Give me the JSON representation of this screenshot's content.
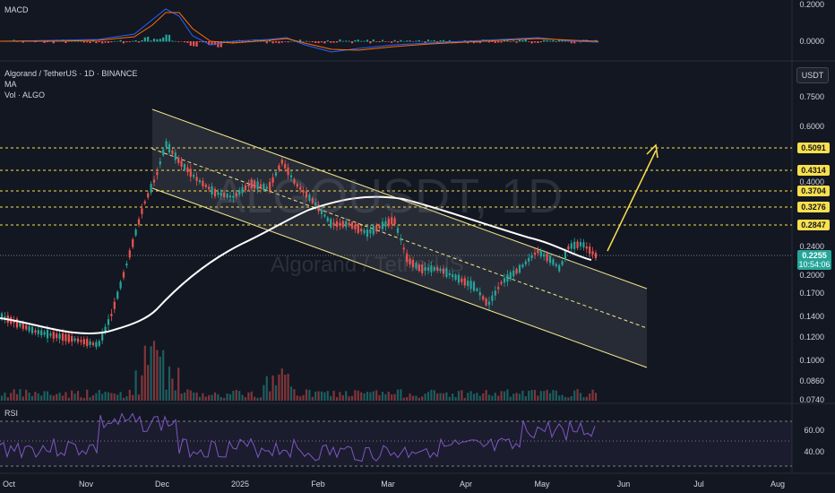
{
  "header": {
    "symbol_line": "Algorand / TetherUS · 1D · BINANCE",
    "indicator_ma": "MA",
    "indicator_vol": "Vol · ALGO",
    "currency": "USDT"
  },
  "watermark": {
    "ticker": "ALGOUSDT, 1D",
    "name": "Algorand / TetherUS"
  },
  "macd": {
    "label": "MACD",
    "ticks": [
      "0.2000",
      "0.0000"
    ]
  },
  "rsi": {
    "label": "RSI",
    "ticks": [
      "60.00",
      "40.00"
    ]
  },
  "price_axis": {
    "ticks": [
      "0.7500",
      "0.6000",
      "0.4000",
      "0.2400",
      "0.2000",
      "0.1700",
      "0.1400",
      "0.1200",
      "0.1000",
      "0.0860",
      "0.0740"
    ],
    "levels": [
      "0.5091",
      "0.4314",
      "0.3704",
      "0.3276",
      "0.2847"
    ],
    "current_price": "0.2255",
    "countdown": "10:54:06"
  },
  "time_axis": [
    "Oct",
    "Nov",
    "Dec",
    "2025",
    "Feb",
    "Mar",
    "Apr",
    "May",
    "Jun",
    "Jul",
    "Aug"
  ],
  "colors": {
    "background": "#131722",
    "up": "#26a69a",
    "down": "#ef5350",
    "level_line": "#f9e04c",
    "channel": "#f0e68c",
    "ma": "#ffffff",
    "macd_line": "#2962ff",
    "signal_line": "#ff6d00",
    "rsi_line": "#7e57c2"
  }
}
